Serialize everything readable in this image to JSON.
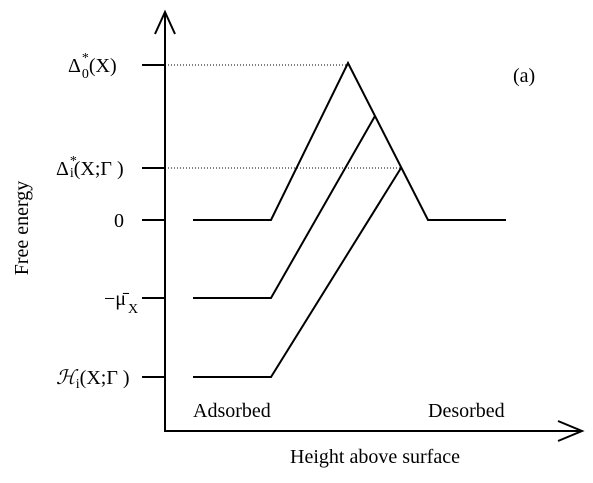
{
  "panel_label": "(a)",
  "y_axis_label": "Free energy",
  "x_axis_label": "Height above surface",
  "region_labels": [
    "Adsorbed",
    "Desorbed"
  ],
  "levels": [
    {
      "symbol": "Δ",
      "sup": "*",
      "sub": "0",
      "arg": "(X)"
    },
    {
      "symbol": "Δ",
      "sup": "*",
      "sub": "i",
      "arg": "(X;Γ )"
    },
    {
      "symbol": "0"
    },
    {
      "symbol": "−μ̄",
      "sub": "X"
    },
    {
      "symbol": "ℋ",
      "sub": "i",
      "arg": "(X;Γ )"
    }
  ]
}
